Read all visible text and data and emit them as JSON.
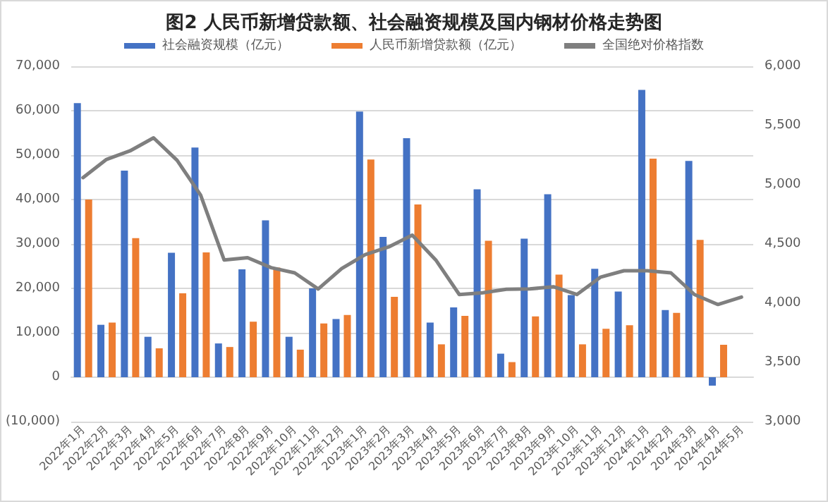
{
  "chart_data": {
    "type": "bar",
    "title": "图2 人民币新增贷款额、社会融资规模及国内钢材价格走势图",
    "categories": [
      "2022年1月",
      "2022年2月",
      "2022年3月",
      "2022年4月",
      "2022年5月",
      "2022年6月",
      "2022年7月",
      "2022年8月",
      "2022年9月",
      "2022年10月",
      "2022年11月",
      "2022年12月",
      "2023年1月",
      "2023年2月",
      "2023年3月",
      "2023年4月",
      "2023年5月",
      "2023年6月",
      "2023年7月",
      "2023年8月",
      "2023年9月",
      "2023年10月",
      "2023年11月",
      "2023年12月",
      "2024年1月",
      "2024年2月",
      "2024年3月",
      "2024年4月",
      "2024年5月"
    ],
    "series": [
      {
        "name": "社会融资规模（亿元）",
        "color": "#4472c4",
        "values": [
          61700,
          11800,
          46500,
          9100,
          28000,
          51700,
          7600,
          24300,
          35300,
          9100,
          20000,
          13100,
          59800,
          31600,
          53800,
          12300,
          15700,
          42300,
          5300,
          31200,
          41200,
          18500,
          24400,
          19300,
          64700,
          15100,
          48700,
          -1900,
          null
        ]
      },
      {
        "name": "人民币新增贷款额（亿元）",
        "color": "#ed7d31",
        "values": [
          40000,
          12300,
          31300,
          6500,
          18900,
          28100,
          6800,
          12500,
          24700,
          6200,
          12100,
          14000,
          49000,
          18100,
          38900,
          7400,
          13800,
          30700,
          3400,
          13700,
          23100,
          7400,
          10900,
          11700,
          49200,
          14500,
          30900,
          7300,
          null
        ]
      },
      {
        "name": "全国绝对价格指数",
        "type": "line",
        "axis": "y2",
        "color": "#7f7f7f",
        "values": [
          5060,
          5214,
          5286,
          5396,
          5206,
          4913,
          4365,
          4384,
          4300,
          4256,
          4120,
          4292,
          4410,
          4475,
          4574,
          4365,
          4073,
          4088,
          4117,
          4120,
          4139,
          4073,
          4219,
          4274,
          4274,
          4256,
          4073,
          3989,
          4051
        ]
      }
    ],
    "ylim": [
      -10000,
      70000
    ],
    "yticks": [
      {
        "value": -10000,
        "label": "(10,000)"
      },
      {
        "value": 0,
        "label": "0"
      },
      {
        "value": 10000,
        "label": "10,000"
      },
      {
        "value": 20000,
        "label": "20,000"
      },
      {
        "value": 30000,
        "label": "30,000"
      },
      {
        "value": 40000,
        "label": "40,000"
      },
      {
        "value": 50000,
        "label": "50,000"
      },
      {
        "value": 60000,
        "label": "60,000"
      },
      {
        "value": 70000,
        "label": "70,000"
      }
    ],
    "y2lim": [
      3000,
      6000
    ],
    "y2ticks": [
      {
        "value": 3000,
        "label": "3,000"
      },
      {
        "value": 3500,
        "label": "3,500"
      },
      {
        "value": 4000,
        "label": "4,000"
      },
      {
        "value": 4500,
        "label": "4,500"
      },
      {
        "value": 5000,
        "label": "5,000"
      },
      {
        "value": 5500,
        "label": "5,500"
      },
      {
        "value": 6000,
        "label": "6,000"
      }
    ],
    "grid": "y",
    "legend": "top",
    "marker": "none",
    "line_style": "solid"
  }
}
